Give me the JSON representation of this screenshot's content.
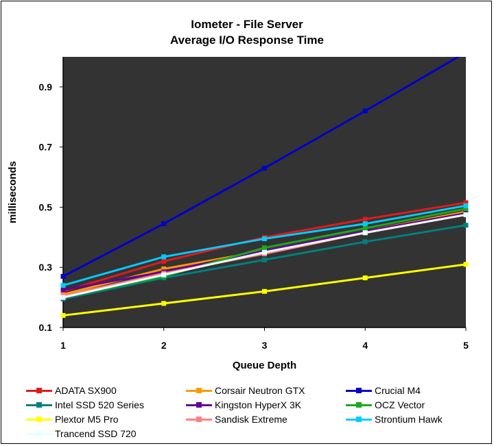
{
  "chart_data": {
    "type": "line",
    "title": "Iometer - File Server",
    "subtitle": "Average I/O Response Time",
    "xlabel": "Queue Depth",
    "ylabel": "milliseconds",
    "x": [
      1,
      2,
      3,
      4,
      5
    ],
    "xlim": [
      1,
      5
    ],
    "ylim": [
      0.1,
      1.0
    ],
    "yticks": [
      0.1,
      0.3,
      0.5,
      0.7,
      0.9
    ],
    "plot_background": "#333333",
    "grid": false,
    "legend_position": "bottom",
    "series": [
      {
        "name": "ADATA SX900",
        "color": "#e01b1b",
        "values": [
          0.22,
          0.32,
          0.4,
          0.46,
          0.515
        ]
      },
      {
        "name": "Corsair Neutron GTX",
        "color": "#ff9900",
        "values": [
          0.21,
          0.295,
          0.355,
          0.42,
          0.485
        ]
      },
      {
        "name": "Crucial M4",
        "color": "#0000cc",
        "values": [
          0.27,
          0.445,
          0.63,
          0.82,
          1.015
        ]
      },
      {
        "name": "Intel SSD 520 Series",
        "color": "#008080",
        "values": [
          0.195,
          0.265,
          0.325,
          0.385,
          0.44
        ]
      },
      {
        "name": "Kingston HyperX 3K",
        "color": "#660099",
        "values": [
          0.225,
          0.285,
          0.355,
          0.42,
          0.48
        ]
      },
      {
        "name": "OCZ Vector",
        "color": "#1aaa1a",
        "values": [
          0.2,
          0.27,
          0.365,
          0.43,
          0.495
        ]
      },
      {
        "name": "Plextor M5 Pro",
        "color": "#ffff00",
        "values": [
          0.14,
          0.18,
          0.22,
          0.265,
          0.31
        ]
      },
      {
        "name": "Sandisk Extreme",
        "color": "#ff8080",
        "values": [
          0.205,
          0.28,
          0.345,
          0.415,
          0.475
        ]
      },
      {
        "name": "Strontium Hawk",
        "color": "#00ccff",
        "values": [
          0.24,
          0.335,
          0.395,
          0.445,
          0.505
        ]
      },
      {
        "name": "Trancend SSD 720",
        "color": "#e8ffff",
        "values": [
          0.2,
          0.275,
          0.35,
          0.415,
          0.475
        ]
      }
    ]
  }
}
